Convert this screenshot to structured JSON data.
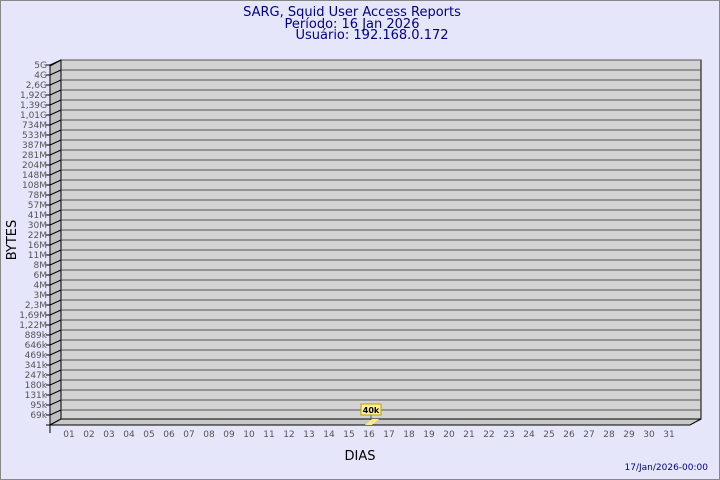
{
  "chart_data": {
    "type": "bar",
    "title": "SARG, Squid User Access Reports",
    "subtitle_period": "Período: 16 Jan 2026",
    "subtitle_user": "Usuário: 192.168.0.172",
    "xlabel": "DIAS",
    "ylabel": "BYTES",
    "y_scale": "log",
    "y_tick_labels": [
      "5G",
      "4G",
      "2,6G",
      "1,92G",
      "1,39G",
      "1,01G",
      "734M",
      "533M",
      "387M",
      "281M",
      "204M",
      "148M",
      "108M",
      "78M",
      "57M",
      "41M",
      "30M",
      "22M",
      "16M",
      "11M",
      "8M",
      "6M",
      "4M",
      "3M",
      "2,3M",
      "1,69M",
      "1,22M",
      "889k",
      "646k",
      "469k",
      "341k",
      "247k",
      "180k",
      "131k",
      "95k",
      "69k"
    ],
    "categories": [
      "01",
      "02",
      "03",
      "04",
      "05",
      "06",
      "07",
      "08",
      "09",
      "10",
      "11",
      "12",
      "13",
      "14",
      "15",
      "16",
      "17",
      "18",
      "19",
      "20",
      "21",
      "22",
      "23",
      "24",
      "25",
      "26",
      "27",
      "28",
      "29",
      "30",
      "31"
    ],
    "bars": [
      {
        "day": "16",
        "value_label": "40k"
      }
    ],
    "grid": true,
    "colors": {
      "bar": "#ffe88a",
      "plot": "#d3d3d3",
      "title": "#00008b",
      "background": "#e6e6fa"
    }
  },
  "footer": {
    "timestamp": "17/Jan/2026-00:00"
  }
}
